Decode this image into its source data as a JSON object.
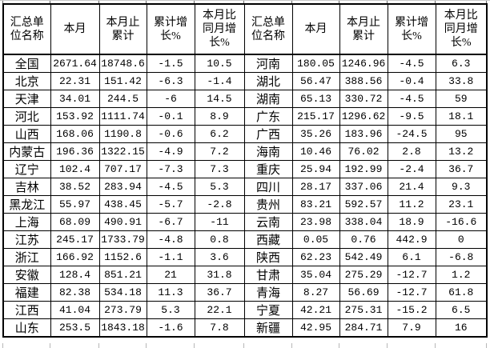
{
  "table": {
    "headers": [
      "汇总单\n位名称",
      "本月",
      "本月止\n累计",
      "累计增\n长%",
      "本月比\n同月增\n长%"
    ],
    "left_rows": [
      [
        "全国",
        "2671.64",
        "18748.6",
        "-1.5",
        "10.5"
      ],
      [
        "北京",
        "22.31",
        "151.42",
        "-6.3",
        "-1.4"
      ],
      [
        "天津",
        "34.01",
        "244.5",
        "-6",
        "14.5"
      ],
      [
        "河北",
        "153.92",
        "1111.74",
        "-0.1",
        "8.9"
      ],
      [
        "山西",
        "168.06",
        "1190.8",
        "-0.6",
        "6.2"
      ],
      [
        "内蒙古",
        "196.36",
        "1322.15",
        "-4.9",
        "7.2"
      ],
      [
        "辽宁",
        "102.4",
        "707.17",
        "-7.3",
        "7.3"
      ],
      [
        "吉林",
        "38.52",
        "283.94",
        "-4.5",
        "5.3"
      ],
      [
        "黑龙江",
        "55.97",
        "438.45",
        "-5.7",
        "-2.8"
      ],
      [
        "上海",
        "68.09",
        "490.91",
        "-6.7",
        "-11"
      ],
      [
        "江苏",
        "245.17",
        "1733.79",
        "-4.8",
        "0.8"
      ],
      [
        "浙江",
        "166.92",
        "1152.6",
        "-1.1",
        "3.6"
      ],
      [
        "安徽",
        "128.4",
        "851.21",
        "21",
        "31.8"
      ],
      [
        "福建",
        "82.38",
        "534.18",
        "11.3",
        "36.7"
      ],
      [
        "江西",
        "41.04",
        "273.79",
        "5.3",
        "22.1"
      ],
      [
        "山东",
        "253.5",
        "1843.18",
        "-1.6",
        "7.8"
      ]
    ],
    "right_rows": [
      [
        "河南",
        "180.05",
        "1246.96",
        "-4.5",
        "6.3"
      ],
      [
        "湖北",
        "56.47",
        "388.56",
        "-0.4",
        "33.8"
      ],
      [
        "湖南",
        "65.13",
        "330.72",
        "-4.5",
        "59"
      ],
      [
        "广东",
        "215.17",
        "1296.62",
        "-9.5",
        "18.1"
      ],
      [
        "广西",
        "35.26",
        "183.96",
        "-24.5",
        "95"
      ],
      [
        "海南",
        "10.46",
        "76.02",
        "2.8",
        "13.2"
      ],
      [
        "重庆",
        "25.94",
        "192.99",
        "-2.4",
        "36.7"
      ],
      [
        "四川",
        "28.17",
        "337.06",
        "21.4",
        "9.3"
      ],
      [
        "贵州",
        "83.21",
        "592.57",
        "11.2",
        "23.1"
      ],
      [
        "云南",
        "23.98",
        "338.04",
        "18.9",
        "-16.6"
      ],
      [
        "西藏",
        "0.05",
        "0.76",
        "442.9",
        "0"
      ],
      [
        "陕西",
        "62.23",
        "542.49",
        "6.1",
        "-6.8"
      ],
      [
        "甘肃",
        "35.04",
        "275.29",
        "-12.7",
        "1.2"
      ],
      [
        "青海",
        "8.27",
        "56.69",
        "-12.7",
        "61.8"
      ],
      [
        "宁夏",
        "42.21",
        "275.31",
        "-15.2",
        "6.5"
      ],
      [
        "新疆",
        "42.95",
        "284.71",
        "7.9",
        "16"
      ]
    ]
  }
}
